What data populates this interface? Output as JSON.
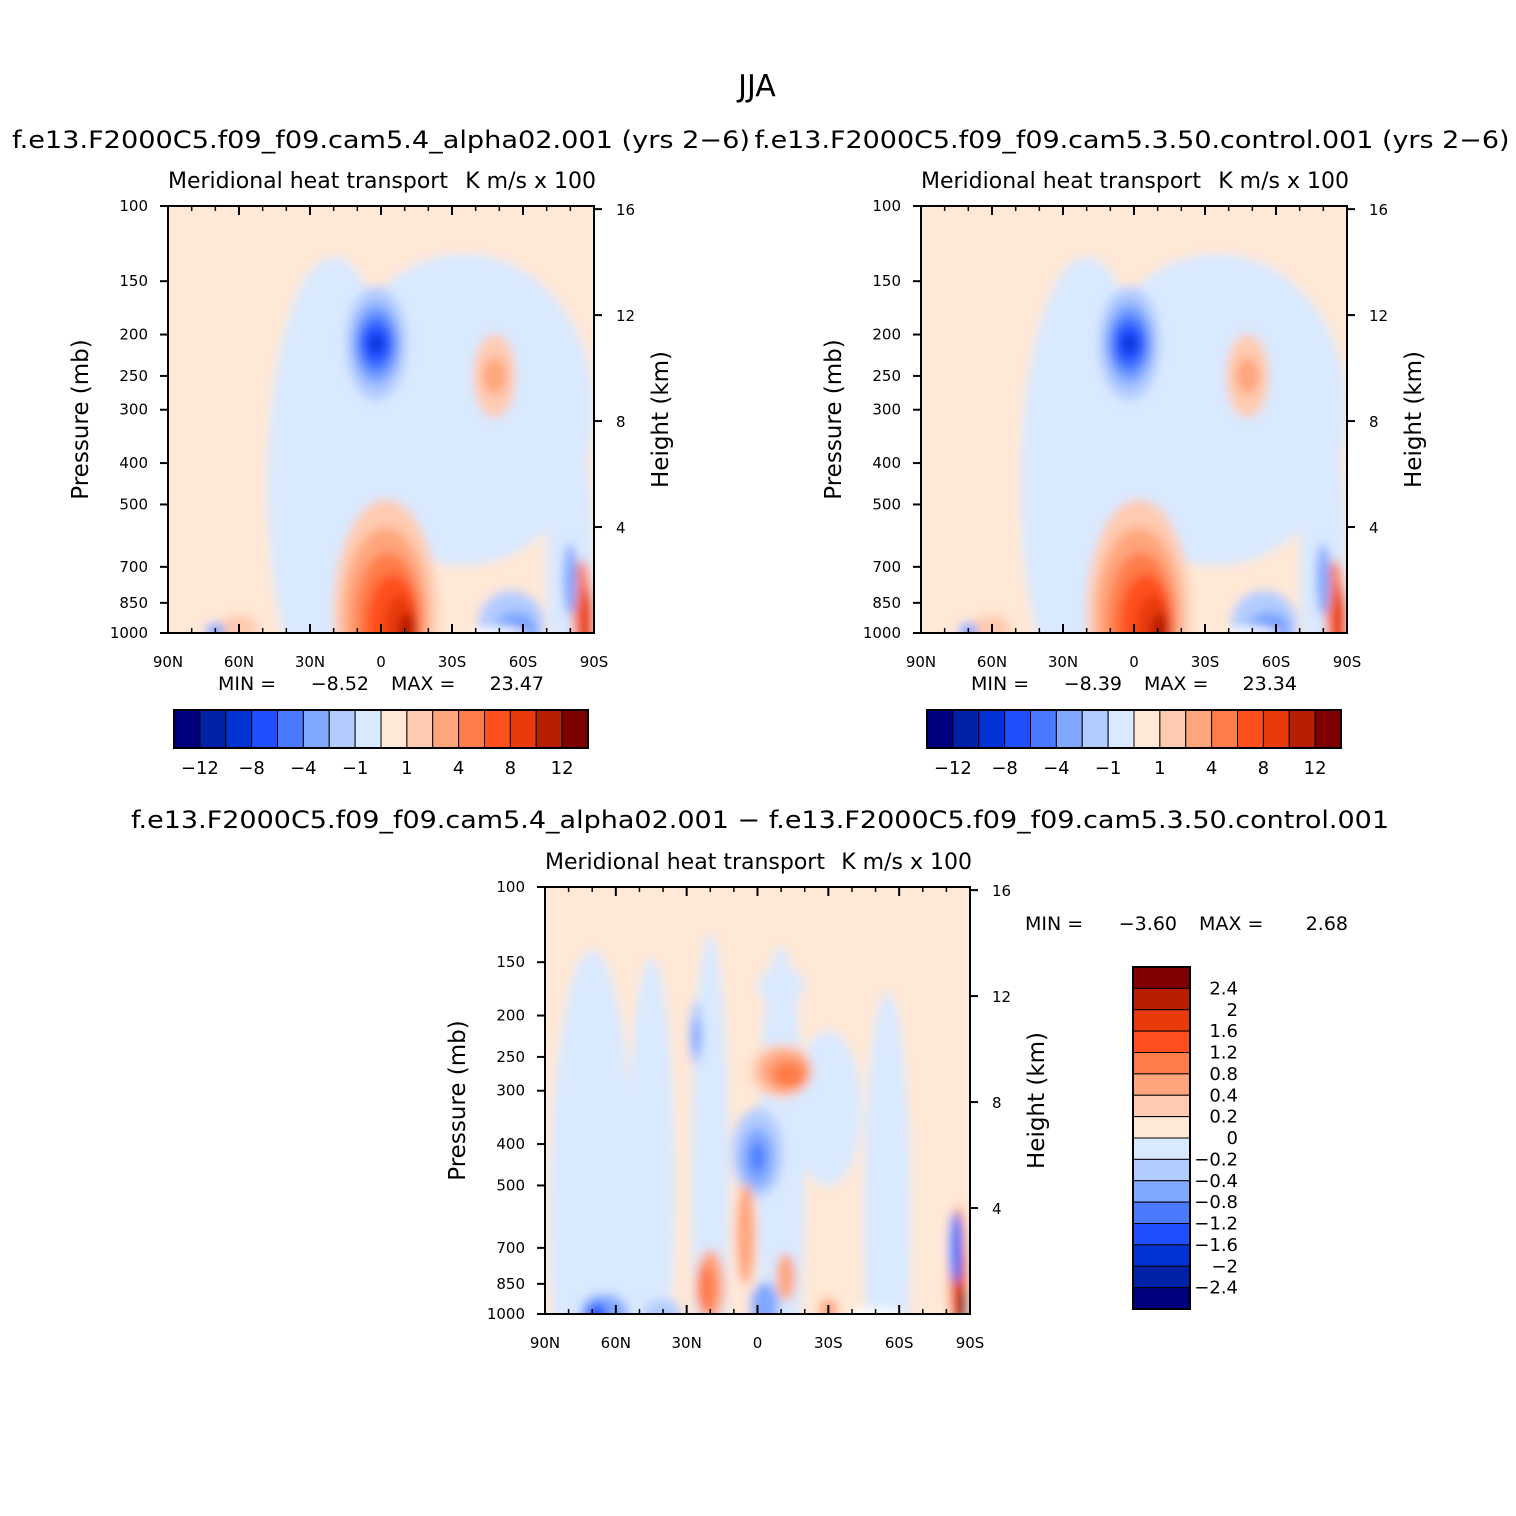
{
  "figure": {
    "title": "JJA",
    "case_a": "f.e13.F2000C5.f09_f09.cam5.4_alpha02.001 (yrs 2−6)",
    "case_b": "f.e13.F2000C5.f09_f09.cam5.3.50.control.001 (yrs 2−6)",
    "diff_title": "f.e13.F2000C5.f09_f09.cam5.4_alpha02.001 − f.e13.F2000C5.f09_f09.cam5.3.50.control.001"
  },
  "colors": {
    "abs_levels": [
      "#00007e",
      "#0022a8",
      "#0033d4",
      "#1e4fff",
      "#4a7aff",
      "#80a8ff",
      "#b3ccff",
      "#d9e9ff",
      "#ffe8d6",
      "#ffcbb0",
      "#ffa57c",
      "#ff7b4a",
      "#ff4f1f",
      "#e83a0a",
      "#b81e00",
      "#7e0000"
    ],
    "diff_levels": [
      "#7e0000",
      "#b81e00",
      "#e83a0a",
      "#ff4f1f",
      "#ff7b4a",
      "#ffa57c",
      "#ffcbb0",
      "#ffe8d6",
      "#d9e9ff",
      "#b3ccff",
      "#80a8ff",
      "#4a7aff",
      "#1e4fff",
      "#0033d4",
      "#0022a8",
      "#00007e"
    ]
  },
  "chart_data": [
    {
      "type": "heatmap",
      "panel": "alpha02",
      "title": "Meridional heat transport",
      "units": "K m/s x 100",
      "ylabel": "Pressure (mb)",
      "ylabel_right": "Height (km)",
      "x_ticks": [
        "90N",
        "60N",
        "30N",
        "0",
        "30S",
        "60S",
        "90S"
      ],
      "y_ticks": [
        100,
        150,
        200,
        250,
        300,
        400,
        500,
        700,
        850,
        1000
      ],
      "y_right_ticks": [
        16,
        12,
        8,
        4
      ],
      "ylim": [
        1000,
        100
      ],
      "log_scale_y": true,
      "min_label": "MIN =",
      "min": "−8.52",
      "max_label": "MAX =",
      "max": "23.47",
      "colorbar_ticks": [
        "−12",
        "−8",
        "−4",
        "−1",
        "1",
        "4",
        "8",
        "12"
      ]
    },
    {
      "type": "heatmap",
      "panel": "control",
      "title": "Meridional heat transport",
      "units": "K m/s x 100",
      "ylabel": "Pressure (mb)",
      "ylabel_right": "Height (km)",
      "x_ticks": [
        "90N",
        "60N",
        "30N",
        "0",
        "30S",
        "60S",
        "90S"
      ],
      "y_ticks": [
        100,
        150,
        200,
        250,
        300,
        400,
        500,
        700,
        850,
        1000
      ],
      "y_right_ticks": [
        16,
        12,
        8,
        4
      ],
      "ylim": [
        1000,
        100
      ],
      "log_scale_y": true,
      "min_label": "MIN =",
      "min": "−8.39",
      "max_label": "MAX =",
      "max": "23.34",
      "colorbar_ticks": [
        "−12",
        "−8",
        "−4",
        "−1",
        "1",
        "4",
        "8",
        "12"
      ]
    },
    {
      "type": "heatmap",
      "panel": "difference",
      "title": "Meridional heat transport",
      "units": "K m/s x 100",
      "ylabel": "Pressure (mb)",
      "ylabel_right": "Height (km)",
      "x_ticks": [
        "90N",
        "60N",
        "30N",
        "0",
        "30S",
        "60S",
        "90S"
      ],
      "y_ticks": [
        100,
        150,
        200,
        250,
        300,
        400,
        500,
        700,
        850,
        1000
      ],
      "y_right_ticks": [
        16,
        12,
        8,
        4
      ],
      "ylim": [
        1000,
        100
      ],
      "log_scale_y": true,
      "min_label": "MIN =",
      "min": "−3.60",
      "max_label": "MAX =",
      "max": "2.68",
      "colorbar_ticks": [
        "2.4",
        "2",
        "1.6",
        "1.2",
        "0.8",
        "0.4",
        "0.2",
        "0",
        "−0.2",
        "−0.4",
        "−0.8",
        "−1.2",
        "−1.6",
        "−2",
        "−2.4"
      ]
    }
  ]
}
